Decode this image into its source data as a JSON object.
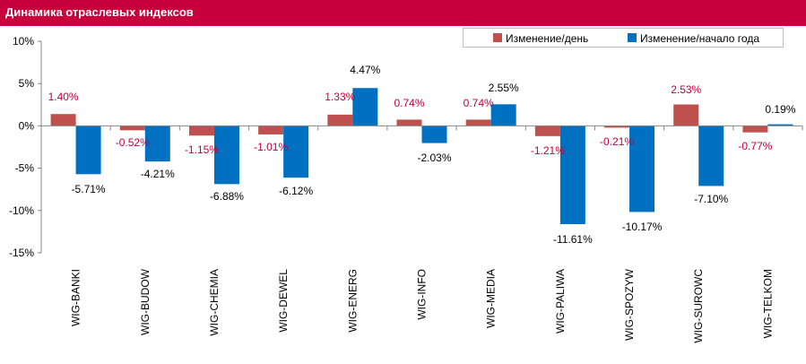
{
  "header": {
    "title": "Динамика отраслевых индексов"
  },
  "colors": {
    "header_bg": "#c8003c",
    "series_day": "#c0504d",
    "series_year": "#0070c0",
    "label_day": "#c0003c",
    "label_year": "#000000"
  },
  "chart_data": {
    "type": "bar",
    "title": "Динамика отраслевых индексов",
    "categories": [
      "WIG-BANKI",
      "WIG-BUDOW",
      "WIG-CHEMIA",
      "WIG-DEWEL",
      "WIG-ENERG",
      "WIG-INFO",
      "WIG-MEDIA",
      "WIG-PALIWA",
      "WIG-SPOZYW",
      "WIG-SUROWC",
      "WIG-TELKOM"
    ],
    "series": [
      {
        "name": "Изменение/день",
        "values": [
          1.4,
          -0.52,
          -1.15,
          -1.01,
          1.33,
          0.74,
          0.74,
          -1.21,
          -0.21,
          2.53,
          -0.77
        ],
        "labels": [
          "1.40%",
          "-0.52%",
          "-1.15%",
          "-1.01%",
          "1.33%",
          "0.74%",
          "0.74%",
          "-1.21%",
          "-0.21%",
          "2.53%",
          "-0.77%"
        ]
      },
      {
        "name": "Изменение/начало года",
        "values": [
          -5.71,
          -4.21,
          -6.88,
          -6.12,
          4.47,
          -2.03,
          2.55,
          -11.61,
          -10.17,
          -7.1,
          0.19
        ],
        "labels": [
          "-5.71%",
          "-4.21%",
          "-6.88%",
          "-6.12%",
          "4.47%",
          "-2.03%",
          "2.55%",
          "-11.61%",
          "-10.17%",
          "-7.10%",
          "0.19%"
        ]
      }
    ],
    "ylim": [
      -15,
      10
    ],
    "yticks": [
      10,
      5,
      0,
      -5,
      -10,
      -15
    ],
    "ytick_labels": [
      "10%",
      "5%",
      "0%",
      "-5%",
      "-10%",
      "-15%"
    ],
    "legend": "top-right",
    "grid": false
  }
}
